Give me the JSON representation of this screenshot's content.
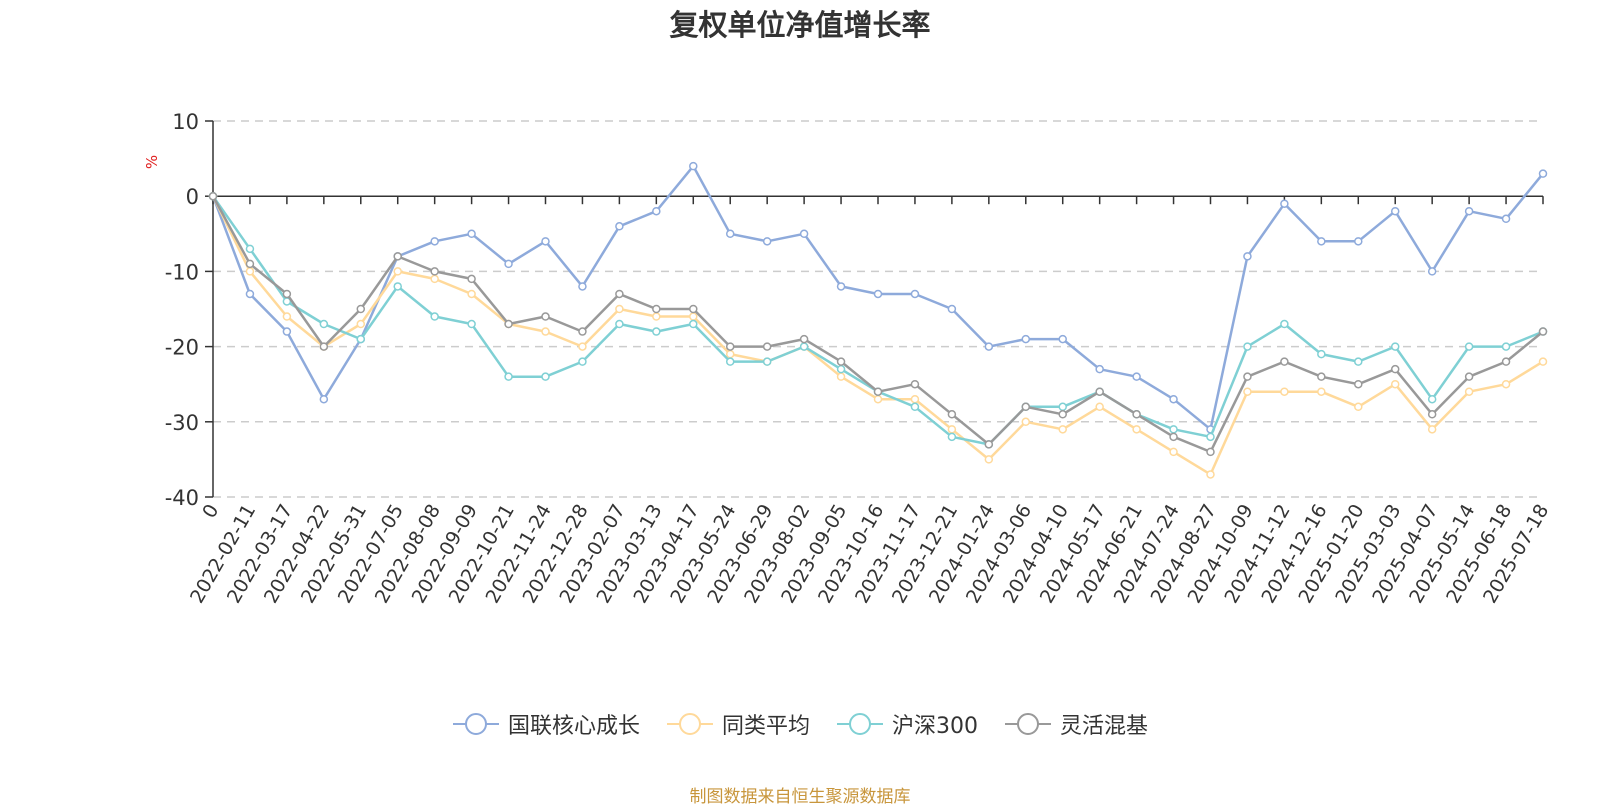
{
  "title": "复权单位净值增长率",
  "source": "制图数据来自恒生聚源数据库",
  "chart_data": {
    "type": "line",
    "title": "复权单位净值增长率",
    "ylabel": "%",
    "ylim": [
      -40,
      10
    ],
    "yticks": [
      10,
      0,
      -10,
      -20,
      -30,
      -40
    ],
    "grid": true,
    "legend_position": "bottom",
    "x_tick_labels": [
      "0",
      "2022-02-11",
      "2022-03-17",
      "2022-04-22",
      "2022-05-31",
      "2022-07-05",
      "2022-08-08",
      "2022-09-09",
      "2022-10-21",
      "2022-11-24",
      "2022-12-28",
      "2023-02-07",
      "2023-03-13",
      "2023-04-17",
      "2023-05-24",
      "2023-06-29",
      "2023-08-02",
      "2023-09-05",
      "2023-10-16",
      "2023-11-17",
      "2023-12-21",
      "2024-01-24",
      "2024-03-06",
      "2024-04-10",
      "2024-05-17",
      "2024-06-21",
      "2024-07-24",
      "2024-08-27",
      "2024-10-09",
      "2024-11-12",
      "2024-12-16",
      "2025-01-20",
      "2025-03-03",
      "2025-04-07",
      "2025-05-14",
      "2025-06-18",
      "2025-07-18"
    ],
    "x": [
      "0",
      "2022-02-11",
      "2022-03-17",
      "2022-04-22",
      "2022-05-31",
      "2022-07-05",
      "2022-08-08",
      "2022-09-09",
      "2022-10-21",
      "2022-11-24",
      "2022-12-28",
      "2023-02-07",
      "2023-03-13",
      "2023-04-17",
      "2023-05-24",
      "2023-06-29",
      "2023-08-02",
      "2023-09-05",
      "2023-10-16",
      "2023-11-17",
      "2023-12-21",
      "2024-01-24",
      "2024-03-06",
      "2024-04-10",
      "2024-05-17",
      "2024-06-21",
      "2024-07-24",
      "2024-08-27",
      "2024-10-09",
      "2024-11-12",
      "2024-12-16",
      "2025-01-20",
      "2025-03-03",
      "2025-04-07",
      "2025-05-14",
      "2025-06-18",
      "2025-07-18"
    ],
    "series": [
      {
        "name": "国联核心成长",
        "color": "#8eaadb",
        "values": [
          0,
          -13,
          -18,
          -27,
          -19,
          -8,
          -6,
          -5,
          -9,
          -6,
          -12,
          -4,
          -2,
          4,
          -5,
          -6,
          -5,
          -12,
          -13,
          -13,
          -15,
          -20,
          -19,
          -19,
          -23,
          -24,
          -27,
          -31,
          -8,
          -1,
          -6,
          -6,
          -2,
          -10,
          -2,
          -3,
          3
        ]
      },
      {
        "name": "同类平均",
        "color": "#ffd99a",
        "values": [
          0,
          -10,
          -16,
          -20,
          -17,
          -10,
          -11,
          -13,
          -17,
          -18,
          -20,
          -15,
          -16,
          -16,
          -21,
          -22,
          -20,
          -24,
          -27,
          -27,
          -31,
          -35,
          -30,
          -31,
          -28,
          -31,
          -34,
          -37,
          -26,
          -26,
          -26,
          -28,
          -25,
          -31,
          -26,
          -25,
          -22
        ]
      },
      {
        "name": "沪深300",
        "color": "#7fd0d4",
        "values": [
          0,
          -7,
          -14,
          -17,
          -19,
          -12,
          -16,
          -17,
          -24,
          -24,
          -22,
          -17,
          -18,
          -17,
          -22,
          -22,
          -20,
          -23,
          -26,
          -28,
          -32,
          -33,
          -28,
          -28,
          -26,
          -29,
          -31,
          -32,
          -20,
          -17,
          -21,
          -22,
          -20,
          -27,
          -20,
          -20,
          -18
        ]
      },
      {
        "name": "灵活混基",
        "color": "#999999",
        "values": [
          0,
          -9,
          -13,
          -20,
          -15,
          -8,
          -10,
          -11,
          -17,
          -16,
          -18,
          -13,
          -15,
          -15,
          -20,
          -20,
          -19,
          -22,
          -26,
          -25,
          -29,
          -33,
          -28,
          -29,
          -26,
          -29,
          -32,
          -34,
          -24,
          -22,
          -24,
          -25,
          -23,
          -29,
          -24,
          -22,
          -18
        ]
      }
    ]
  }
}
